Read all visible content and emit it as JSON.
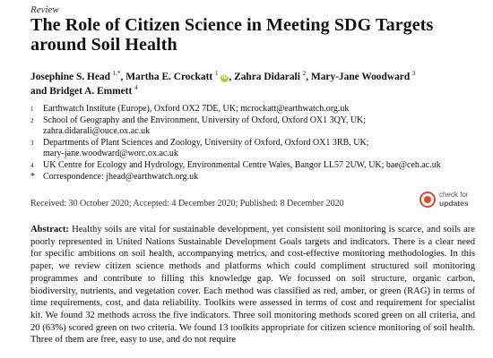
{
  "header": {
    "article_type": "Review",
    "title_line1": "The Role of Citizen Science in Meeting SDG Targets",
    "title_line2": "around Soil Health"
  },
  "authors": {
    "a1_name": "Josephine S. Head",
    "a1_sup": "1,*",
    "a2_name": "Martha E. Crockatt",
    "a2_sup": "1",
    "orcid_glyph": "iD",
    "a3_name": "Zahra Didarali",
    "a3_sup": "2",
    "a4_name": "Mary-Jane Woodward",
    "a4_sup": "3",
    "a5_name": "and Bridget A. Emmett",
    "a5_sup": "4",
    "separator": ","
  },
  "affiliations": [
    {
      "num": "1",
      "line1": "Earthwatch Institute (Europe), Oxford OX2 7DE, UK; mcrockatt@earthwatch.org.uk",
      "line2": ""
    },
    {
      "num": "2",
      "line1": "School of Geography and the Environment, University of Oxford, Oxford OX1 3QY, UK;",
      "line2": "zahra.didarali@ouce.ox.ac.uk"
    },
    {
      "num": "3",
      "line1": "Departments of Plant Sciences and Zoology, University of Oxford, Oxford OX1 3RB, UK;",
      "line2": "mary-jane.woodward@worc.ox.ac.uk"
    },
    {
      "num": "4",
      "line1": "UK Centre for Ecology and Hydrology, Environmental Centre Wales, Bangor LL57 2UW, UK; bae@ceh.ac.uk",
      "line2": ""
    },
    {
      "num": "*",
      "line1": "Correspondence: jhead@earthwatch.org.uk",
      "line2": ""
    }
  ],
  "dates": "Received: 30 October 2020; Accepted: 4 December 2020; Published: 8 December 2020",
  "badge": {
    "line1": "check for",
    "line2": "updates"
  },
  "abstract": {
    "label": "Abstract:",
    "text": "Healthy soils are vital for sustainable development, yet consistent soil monitoring is scarce, and soils are poorly represented in United Nations Sustainable Development Goals targets and indicators. There is a clear need for specific ambitions on soil health, accompanying metrics, and cost-effective monitoring methodologies. In this paper, we review citizen science methods and platforms which could compliment structured soil monitoring programmes and contribute to filling this knowledge gap. We focussed on soil structure, organic carbon, biodiversity, nutrients, and vegetation cover. Each method was classified as red, amber, or green (RAG) in terms of time requirements, cost, and data reliability. Toolkits were assessed in terms of cost and requirement for specialist kit. We found 32 methods across the five indicators. Three soil monitoring methods scored green on all criteria, and 20 (63%) scored green on two criteria. We found 13 toolkits appropriate for citizen science monitoring of soil health. Three of them are free, easy to use, and do not require"
  },
  "colors": {
    "orcid": "#a6ce39",
    "badge_accent": "#d94a2a"
  }
}
